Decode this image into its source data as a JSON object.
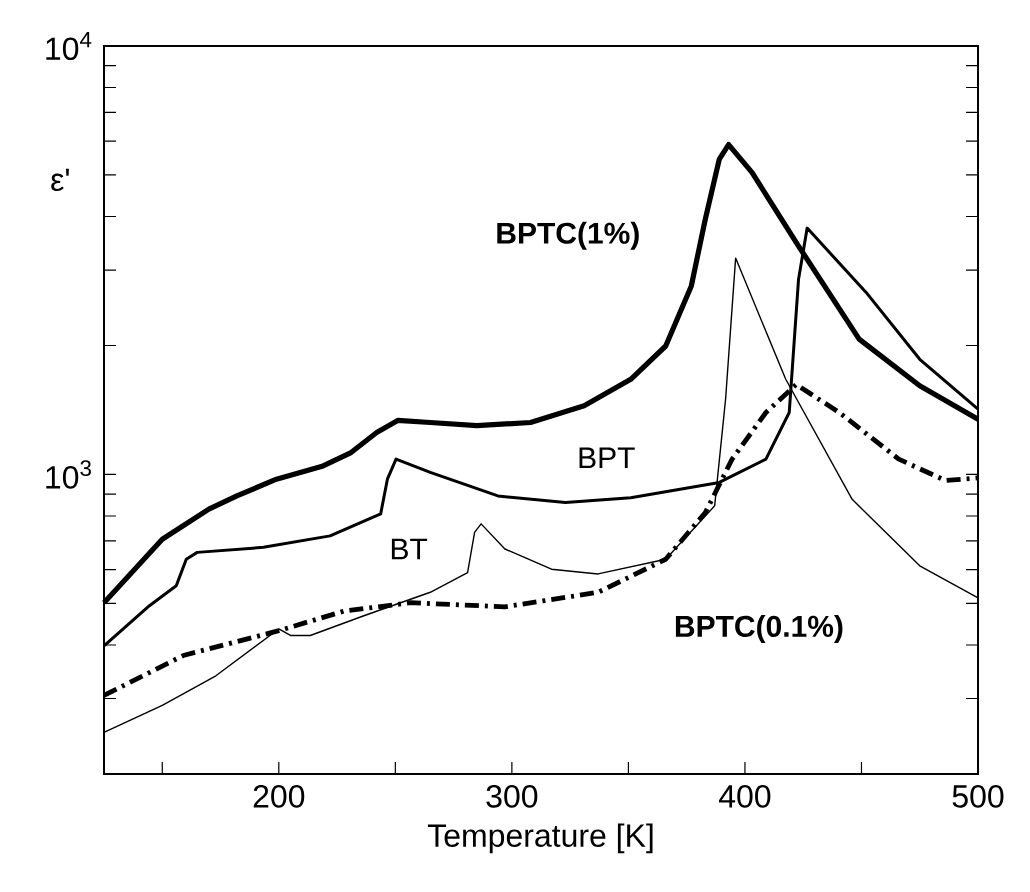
{
  "chart_data": {
    "type": "line",
    "xlabel": "Temperature [K]",
    "ylabel": "ε'",
    "log": "y",
    "xlim": [
      125,
      500
    ],
    "ylim": [
      200,
      10000
    ],
    "xticks": [
      {
        "value": 150,
        "label": null
      },
      200,
      {
        "value": 250,
        "label": null
      },
      300,
      {
        "value": 350,
        "label": null
      },
      400,
      {
        "value": 450,
        "label": null
      },
      500
    ],
    "yticks": [
      {
        "value": 200,
        "label": null
      },
      {
        "value": 300,
        "label": null
      },
      {
        "value": 400,
        "label": null
      },
      {
        "value": 500,
        "label": null
      },
      {
        "value": 600,
        "label": null
      },
      {
        "value": 700,
        "label": null
      },
      {
        "value": 800,
        "label": null
      },
      {
        "value": 900,
        "label": null
      },
      {
        "value": 1000,
        "label": "10$^{3}$"
      },
      {
        "value": 2000,
        "label": null
      },
      {
        "value": 3000,
        "label": null
      },
      {
        "value": 4000,
        "label": null
      },
      {
        "value": 5000,
        "label": null
      },
      {
        "value": 6000,
        "label": null
      },
      {
        "value": 7000,
        "label": null
      },
      {
        "value": 8000,
        "label": null
      },
      {
        "value": 9000,
        "label": null
      },
      {
        "value": 10000,
        "label": "10$^{4}$"
      }
    ],
    "series": [
      {
        "name": "BPTC(1%)",
        "color": "#000000",
        "line_style": "solid",
        "x": [
          125,
          150,
          170,
          182,
          199,
          219,
          231,
          242,
          251,
          265,
          285,
          308,
          331,
          351,
          366,
          377,
          383,
          389,
          393,
          403,
          423,
          449,
          475,
          500
        ],
        "values": [
          502,
          706,
          830,
          891,
          975,
          1047,
          1125,
          1253,
          1337,
          1322,
          1300,
          1322,
          1446,
          1668,
          1995,
          2755,
          3945,
          5445,
          5888,
          5070,
          3412,
          2070,
          1611,
          1346
        ]
      },
      {
        "name": "BPT",
        "color": "#000000",
        "line_style": "solid",
        "x": [
          125,
          144.5,
          156,
          160.3,
          165,
          193.4,
          222,
          243.7,
          246.6,
          250.3,
          265,
          294,
          323,
          351,
          389,
          409,
          419,
          423,
          426.7,
          452,
          475,
          500
        ],
        "values": [
          398,
          494,
          550,
          634,
          658,
          676,
          719,
          809,
          975,
          1086,
          1011,
          891,
          860,
          882,
          958,
          1086,
          1395,
          2857,
          3758,
          2660,
          1857,
          1420
        ]
      },
      {
        "name": "BT",
        "color": "#000000",
        "line_style": "solid",
        "x": [
          125,
          150,
          173,
          200,
          205,
          213.5,
          236.5,
          265,
          281,
          284,
          286.8,
          297,
          317,
          337,
          366,
          387,
          391.7,
          396,
          417.5,
          446,
          475,
          500
        ],
        "values": [
          250,
          289,
          339,
          436,
          421,
          421,
          468,
          531,
          590,
          733,
          767,
          670,
          601,
          586,
          634,
          845,
          1500,
          3199,
          1668,
          875,
          612,
          515
        ]
      },
      {
        "name": "BPTC(0.1%)",
        "color": "#000000",
        "line_style": "dashdot",
        "x": [
          125,
          159,
          200,
          228,
          256.6,
          297,
          337,
          366,
          383,
          394.5,
          409,
          422,
          440.5,
          466,
          486,
          500
        ],
        "values": [
          305,
          378,
          432,
          480,
          502,
          491,
          531,
          634,
          815,
          1086,
          1395,
          1622,
          1395,
          1086,
          968,
          982
        ]
      }
    ]
  }
}
